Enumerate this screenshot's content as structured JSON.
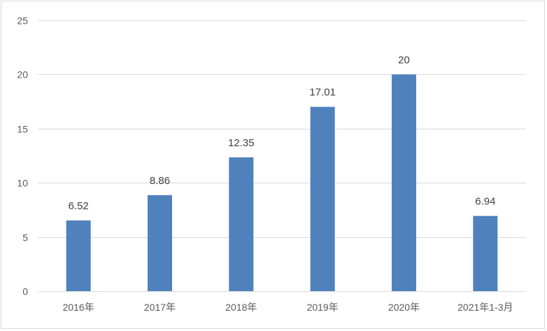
{
  "chart_data": {
    "type": "bar",
    "title": "",
    "xlabel": "",
    "ylabel": "",
    "categories": [
      "2016年",
      "2017年",
      "2018年",
      "2019年",
      "2020年",
      "2021年1-3月"
    ],
    "values": [
      6.52,
      8.86,
      12.35,
      17.01,
      20,
      6.94
    ],
    "data_labels": [
      "6.52",
      "8.86",
      "12.35",
      "17.01",
      "20",
      "6.94"
    ],
    "ylim": [
      0,
      25
    ],
    "yticks": [
      0,
      5,
      10,
      15,
      20,
      25
    ],
    "grid": true,
    "legend": "none",
    "bar_color": "#4f81bd",
    "grid_color": "#d9d9d9"
  }
}
